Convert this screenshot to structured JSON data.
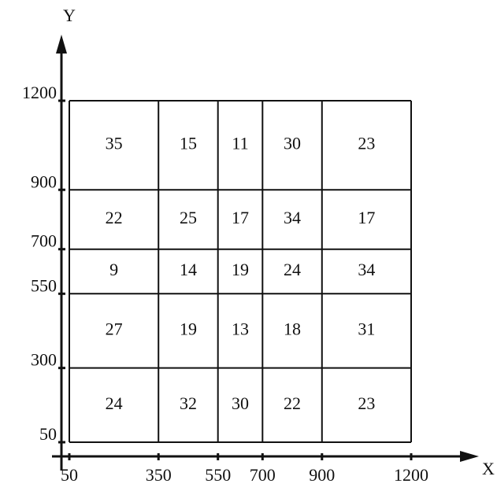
{
  "axes": {
    "x_label": "X",
    "y_label": "Y",
    "x_ticks": [
      50,
      350,
      550,
      700,
      900,
      1200
    ],
    "y_ticks": [
      50,
      300,
      550,
      700,
      900,
      1200
    ]
  },
  "grid": {
    "rows": [
      [
        35,
        15,
        11,
        30,
        23
      ],
      [
        22,
        25,
        17,
        34,
        17
      ],
      [
        9,
        14,
        19,
        24,
        34
      ],
      [
        27,
        19,
        13,
        18,
        31
      ],
      [
        24,
        32,
        30,
        22,
        23
      ]
    ]
  }
}
